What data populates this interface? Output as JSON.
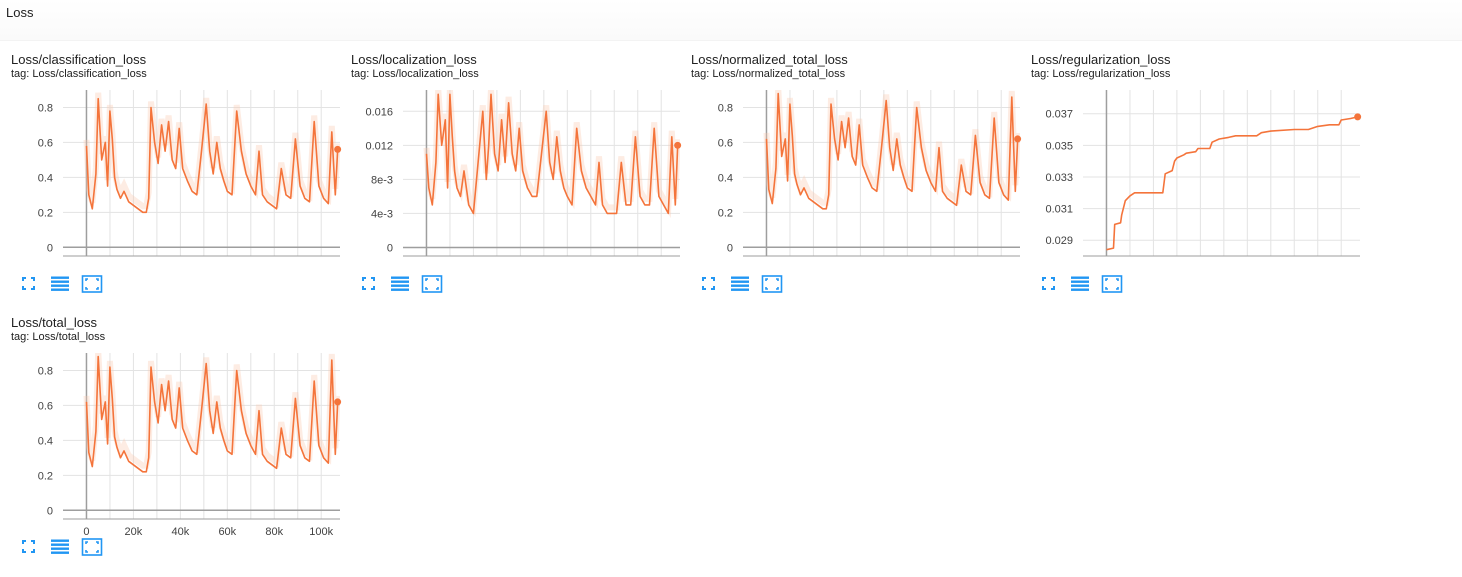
{
  "section": {
    "title": "Loss"
  },
  "colors": {
    "line": "#f4743b",
    "smooth_band": "#f8c8b0",
    "grid": "#e3e3e3",
    "axis": "#9e9e9e",
    "tick_text": "#424242",
    "icon": "#2196f3"
  },
  "icons": [
    "fit-domain-icon",
    "toggle-log-scale-icon",
    "expand-chart-icon"
  ],
  "chart_data": [
    {
      "type": "line",
      "title": "Loss/classification_loss",
      "tag": "tag: Loss/classification_loss",
      "xlabel": "",
      "ylabel": "",
      "xlim": [
        -10000,
        108000
      ],
      "ylim": [
        -0.05,
        0.9
      ],
      "yticks": [
        0,
        0.2,
        0.4,
        0.6,
        0.8
      ],
      "ytick_labels": [
        "0",
        "0.2",
        "0.4",
        "0.6",
        "0.8"
      ],
      "xticks": [
        0,
        20000,
        40000,
        60000,
        80000,
        100000
      ],
      "xtick_labels": [],
      "grid": true,
      "series": [
        {
          "x": [
            0,
            1000,
            2500,
            4000,
            5000,
            6500,
            8000,
            9000,
            10000,
            11000,
            12000,
            13000,
            14500,
            16000,
            18000,
            20000,
            22000,
            24000,
            25500,
            26500,
            27500,
            29000,
            30500,
            32000,
            33500,
            35000,
            36500,
            38000,
            39500,
            41000,
            43000,
            45000,
            47000,
            49000,
            51000,
            52500,
            54000,
            55500,
            57000,
            58500,
            60000,
            62000,
            64000,
            66000,
            68000,
            70000,
            72000,
            73500,
            75000,
            77000,
            79000,
            81000,
            83000,
            85000,
            87000,
            89000,
            91000,
            93000,
            95000,
            97000,
            99000,
            101000,
            103000,
            104500,
            106000,
            107000
          ],
          "y": [
            0.58,
            0.3,
            0.22,
            0.42,
            0.85,
            0.5,
            0.6,
            0.35,
            0.78,
            0.62,
            0.4,
            0.33,
            0.28,
            0.32,
            0.26,
            0.24,
            0.22,
            0.2,
            0.2,
            0.28,
            0.8,
            0.6,
            0.48,
            0.7,
            0.55,
            0.72,
            0.5,
            0.45,
            0.68,
            0.45,
            0.38,
            0.32,
            0.3,
            0.55,
            0.82,
            0.55,
            0.42,
            0.6,
            0.45,
            0.38,
            0.32,
            0.3,
            0.78,
            0.55,
            0.42,
            0.35,
            0.3,
            0.55,
            0.3,
            0.26,
            0.24,
            0.22,
            0.45,
            0.3,
            0.28,
            0.62,
            0.35,
            0.28,
            0.26,
            0.72,
            0.35,
            0.28,
            0.25,
            0.66,
            0.3,
            0.56
          ]
        }
      ]
    },
    {
      "type": "line",
      "title": "Loss/localization_loss",
      "tag": "tag: Loss/localization_loss",
      "xlabel": "",
      "ylabel": "",
      "xlim": [
        -10000,
        108000
      ],
      "ylim": [
        -0.001,
        0.0185
      ],
      "yticks": [
        0,
        0.004,
        0.008,
        0.012,
        0.016
      ],
      "ytick_labels": [
        "0",
        "4e-3",
        "8e-3",
        "0.012",
        "0.016"
      ],
      "xticks": [
        0,
        20000,
        40000,
        60000,
        80000,
        100000
      ],
      "xtick_labels": [],
      "grid": true,
      "series": [
        {
          "x": [
            0,
            1000,
            2500,
            4000,
            5000,
            6500,
            8000,
            9000,
            10000,
            11000,
            12000,
            13000,
            14500,
            16000,
            18000,
            20000,
            22000,
            24000,
            25500,
            26500,
            27500,
            29000,
            30500,
            32000,
            33500,
            35000,
            36500,
            38000,
            39500,
            41000,
            43000,
            45000,
            47000,
            49000,
            51000,
            52500,
            54000,
            55500,
            57000,
            58500,
            60000,
            62000,
            64000,
            66000,
            68000,
            70000,
            72000,
            73500,
            75000,
            77000,
            79000,
            81000,
            83000,
            85000,
            87000,
            89000,
            91000,
            93000,
            95000,
            97000,
            99000,
            101000,
            103000,
            104500,
            106000,
            107000
          ],
          "y": [
            0.011,
            0.007,
            0.005,
            0.01,
            0.018,
            0.012,
            0.015,
            0.007,
            0.018,
            0.013,
            0.009,
            0.007,
            0.006,
            0.009,
            0.005,
            0.004,
            0.01,
            0.016,
            0.008,
            0.012,
            0.018,
            0.011,
            0.009,
            0.015,
            0.01,
            0.017,
            0.011,
            0.009,
            0.014,
            0.009,
            0.007,
            0.006,
            0.006,
            0.011,
            0.016,
            0.01,
            0.008,
            0.013,
            0.009,
            0.007,
            0.006,
            0.005,
            0.014,
            0.009,
            0.007,
            0.006,
            0.005,
            0.01,
            0.005,
            0.004,
            0.004,
            0.004,
            0.01,
            0.005,
            0.005,
            0.013,
            0.006,
            0.005,
            0.005,
            0.014,
            0.006,
            0.005,
            0.004,
            0.013,
            0.005,
            0.012
          ]
        }
      ]
    },
    {
      "type": "line",
      "title": "Loss/normalized_total_loss",
      "tag": "tag: Loss/normalized_total_loss",
      "xlabel": "",
      "ylabel": "",
      "xlim": [
        -10000,
        108000
      ],
      "ylim": [
        -0.05,
        0.9
      ],
      "yticks": [
        0,
        0.2,
        0.4,
        0.6,
        0.8
      ],
      "ytick_labels": [
        "0",
        "0.2",
        "0.4",
        "0.6",
        "0.8"
      ],
      "xticks": [
        0,
        20000,
        40000,
        60000,
        80000,
        100000
      ],
      "xtick_labels": [],
      "grid": true,
      "series": [
        {
          "x": [
            0,
            1000,
            2500,
            4000,
            5000,
            6500,
            8000,
            9000,
            10000,
            11000,
            12000,
            13000,
            14500,
            16000,
            18000,
            20000,
            22000,
            24000,
            25500,
            26500,
            27500,
            29000,
            30500,
            32000,
            33500,
            35000,
            36500,
            38000,
            39500,
            41000,
            43000,
            45000,
            47000,
            49000,
            51000,
            52500,
            54000,
            55500,
            57000,
            58500,
            60000,
            62000,
            64000,
            66000,
            68000,
            70000,
            72000,
            73500,
            75000,
            77000,
            79000,
            81000,
            83000,
            85000,
            87000,
            89000,
            91000,
            93000,
            95000,
            97000,
            99000,
            101000,
            103000,
            104500,
            106000,
            107000
          ],
          "y": [
            0.62,
            0.33,
            0.25,
            0.45,
            0.88,
            0.52,
            0.62,
            0.38,
            0.82,
            0.64,
            0.42,
            0.36,
            0.3,
            0.34,
            0.28,
            0.26,
            0.24,
            0.22,
            0.22,
            0.3,
            0.82,
            0.62,
            0.5,
            0.72,
            0.57,
            0.74,
            0.52,
            0.47,
            0.7,
            0.47,
            0.4,
            0.34,
            0.32,
            0.57,
            0.84,
            0.57,
            0.44,
            0.62,
            0.47,
            0.4,
            0.34,
            0.32,
            0.8,
            0.57,
            0.44,
            0.37,
            0.32,
            0.57,
            0.32,
            0.28,
            0.26,
            0.24,
            0.47,
            0.32,
            0.3,
            0.64,
            0.37,
            0.3,
            0.28,
            0.74,
            0.37,
            0.3,
            0.27,
            0.86,
            0.32,
            0.62
          ]
        }
      ]
    },
    {
      "type": "line",
      "title": "Loss/regularization_loss",
      "tag": "tag: Loss/regularization_loss",
      "xlabel": "",
      "ylabel": "",
      "xlim": [
        -10000,
        108000
      ],
      "ylim": [
        0.028,
        0.0385
      ],
      "yticks": [
        0.029,
        0.031,
        0.033,
        0.035,
        0.037
      ],
      "ytick_labels": [
        "0.029",
        "0.031",
        "0.033",
        "0.035",
        "0.037"
      ],
      "xticks": [
        0,
        20000,
        40000,
        60000,
        80000,
        100000
      ],
      "xtick_labels": [],
      "grid": true,
      "series": [
        {
          "x": [
            0,
            3000,
            3500,
            6000,
            6500,
            8000,
            10000,
            12000,
            14000,
            16000,
            18000,
            20000,
            24000,
            25000,
            28000,
            29000,
            30000,
            33000,
            34000,
            38000,
            39000,
            44000,
            45000,
            48000,
            52000,
            55000,
            60000,
            64000,
            66000,
            70000,
            80000,
            86000,
            90000,
            95000,
            99000,
            100000,
            104000,
            107000
          ],
          "y": [
            0.0284,
            0.0285,
            0.03,
            0.0301,
            0.0306,
            0.0315,
            0.0318,
            0.032,
            0.032,
            0.032,
            0.032,
            0.032,
            0.032,
            0.0332,
            0.0334,
            0.034,
            0.0342,
            0.0344,
            0.0345,
            0.0346,
            0.0348,
            0.0348,
            0.0352,
            0.0354,
            0.0355,
            0.0356,
            0.0356,
            0.0356,
            0.0358,
            0.0359,
            0.036,
            0.036,
            0.0362,
            0.0363,
            0.0363,
            0.0366,
            0.0367,
            0.0368
          ]
        }
      ]
    },
    {
      "type": "line",
      "title": "Loss/total_loss",
      "tag": "tag: Loss/total_loss",
      "xlabel": "",
      "ylabel": "",
      "xlim": [
        -10000,
        108000
      ],
      "ylim": [
        -0.05,
        0.9
      ],
      "yticks": [
        0,
        0.2,
        0.4,
        0.6,
        0.8
      ],
      "ytick_labels": [
        "0",
        "0.2",
        "0.4",
        "0.6",
        "0.8"
      ],
      "xticks": [
        0,
        20000,
        40000,
        60000,
        80000,
        100000
      ],
      "xtick_labels": [
        "0",
        "20k",
        "40k",
        "60k",
        "80k",
        "100k"
      ],
      "grid": true,
      "series": [
        {
          "x": [
            0,
            1000,
            2500,
            4000,
            5000,
            6500,
            8000,
            9000,
            10000,
            11000,
            12000,
            13000,
            14500,
            16000,
            18000,
            20000,
            22000,
            24000,
            25500,
            26500,
            27500,
            29000,
            30500,
            32000,
            33500,
            35000,
            36500,
            38000,
            39500,
            41000,
            43000,
            45000,
            47000,
            49000,
            51000,
            52500,
            54000,
            55500,
            57000,
            58500,
            60000,
            62000,
            64000,
            66000,
            68000,
            70000,
            72000,
            73500,
            75000,
            77000,
            79000,
            81000,
            83000,
            85000,
            87000,
            89000,
            91000,
            93000,
            95000,
            97000,
            99000,
            101000,
            103000,
            104500,
            106000,
            107000
          ],
          "y": [
            0.62,
            0.33,
            0.25,
            0.45,
            0.88,
            0.52,
            0.62,
            0.38,
            0.82,
            0.64,
            0.42,
            0.36,
            0.3,
            0.34,
            0.28,
            0.26,
            0.24,
            0.22,
            0.22,
            0.3,
            0.82,
            0.62,
            0.5,
            0.72,
            0.57,
            0.74,
            0.52,
            0.47,
            0.7,
            0.47,
            0.4,
            0.34,
            0.32,
            0.57,
            0.84,
            0.57,
            0.44,
            0.62,
            0.47,
            0.4,
            0.34,
            0.32,
            0.8,
            0.57,
            0.44,
            0.37,
            0.32,
            0.57,
            0.32,
            0.28,
            0.26,
            0.24,
            0.47,
            0.32,
            0.3,
            0.64,
            0.37,
            0.3,
            0.28,
            0.74,
            0.37,
            0.3,
            0.27,
            0.86,
            0.32,
            0.62
          ]
        }
      ]
    }
  ]
}
